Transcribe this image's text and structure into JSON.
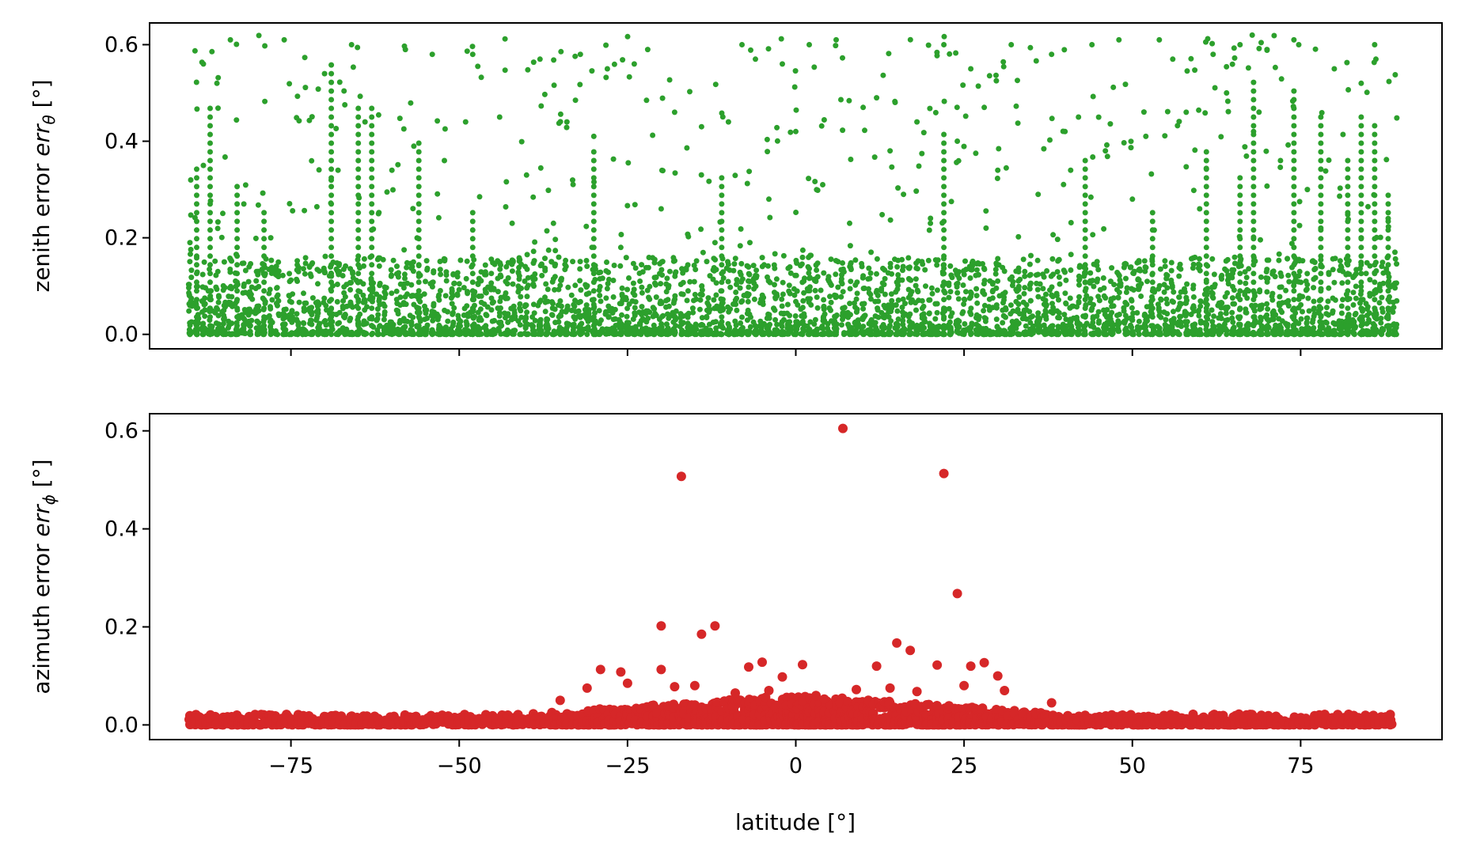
{
  "chart_data": [
    {
      "type": "scatter",
      "panel": "top",
      "title": "",
      "xlabel": "",
      "ylabel_prefix": "zenith error ",
      "ylabel_symbol": "err",
      "ylabel_subscript": "θ",
      "ylabel_unit": " [°]",
      "xlim": [
        -96,
        96
      ],
      "ylim": [
        -0.03,
        0.645
      ],
      "xticks": [
        -75,
        -50,
        -25,
        0,
        25,
        50,
        75
      ],
      "xtick_labels_visible": false,
      "yticks": [
        0.0,
        0.2,
        0.4,
        0.6
      ],
      "ytick_labels": [
        "0.0",
        "0.2",
        "0.4",
        "0.6"
      ],
      "grid": false,
      "color": "#2ca02c",
      "series": [
        {
          "points_sample": [
            [
              -90,
              0.0
            ],
            [
              -90,
              0.06
            ],
            [
              -90,
              0.19
            ],
            [
              -88,
              0.35
            ],
            [
              -88,
              0.56
            ],
            [
              -86,
              0.52
            ],
            [
              -84,
              0.61
            ],
            [
              -84,
              0.0
            ],
            [
              -82,
              0.27
            ],
            [
              -80,
              0.05
            ],
            [
              -78,
              0.2
            ],
            [
              -76,
              0.61
            ],
            [
              -74,
              0.0
            ],
            [
              -72,
              0.12
            ],
            [
              -70,
              0.54
            ],
            [
              -68,
              0.34
            ],
            [
              -66,
              0.6
            ],
            [
              -64,
              0.44
            ],
            [
              -62,
              0.25
            ],
            [
              -60,
              0.34
            ],
            [
              -58,
              0.59
            ],
            [
              -56,
              0.12
            ],
            [
              -54,
              0.58
            ],
            [
              -52,
              0.08
            ],
            [
              -50,
              0.0
            ],
            [
              -48,
              0.58
            ],
            [
              -46,
              0.04
            ],
            [
              -44,
              0.45
            ],
            [
              -42,
              0.15
            ],
            [
              -40,
              0.33
            ],
            [
              -38,
              0.57
            ],
            [
              -36,
              0.23
            ],
            [
              -34,
              0.44
            ],
            [
              -32,
              0.58
            ],
            [
              -30,
              0.41
            ],
            [
              -28,
              0.55
            ],
            [
              -26,
              0.18
            ],
            [
              -24,
              0.56
            ],
            [
              -22,
              0.59
            ],
            [
              -20,
              0.26
            ],
            [
              -18,
              0.46
            ],
            [
              -16,
              0.09
            ],
            [
              -14,
              0.43
            ],
            [
              -12,
              0.19
            ],
            [
              -10,
              0.44
            ],
            [
              -8,
              0.6
            ],
            [
              -6,
              0.57
            ],
            [
              -4,
              0.28
            ],
            [
              -2,
              0.56
            ],
            [
              0,
              0.42
            ],
            [
              2,
              0.6
            ],
            [
              4,
              0.31
            ],
            [
              6,
              0.61
            ],
            [
              8,
              0.23
            ],
            [
              10,
              0.47
            ],
            [
              12,
              0.49
            ],
            [
              14,
              0.38
            ],
            [
              16,
              0.29
            ],
            [
              18,
              0.44
            ],
            [
              20,
              0.23
            ],
            [
              22,
              0.6
            ],
            [
              24,
              0.4
            ],
            [
              26,
              0.55
            ],
            [
              28,
              0.47
            ],
            [
              30,
              0.34
            ],
            [
              32,
              0.6
            ],
            [
              34,
              0.12
            ],
            [
              36,
              0.29
            ],
            [
              38,
              0.58
            ],
            [
              40,
              0.42
            ],
            [
              42,
              0.45
            ],
            [
              44,
              0.6
            ],
            [
              46,
              0.38
            ],
            [
              48,
              0.61
            ],
            [
              50,
              0.28
            ],
            [
              52,
              0.41
            ],
            [
              54,
              0.61
            ],
            [
              56,
              0.57
            ],
            [
              58,
              0.46
            ],
            [
              60,
              0.26
            ],
            [
              62,
              0.58
            ],
            [
              64,
              0.5
            ],
            [
              66,
              0.6
            ],
            [
              68,
              0.42
            ],
            [
              70,
              0.59
            ],
            [
              72,
              0.36
            ],
            [
              74,
              0.61
            ],
            [
              76,
              0.3
            ],
            [
              78,
              0.22
            ],
            [
              80,
              0.55
            ],
            [
              82,
              0.0
            ],
            [
              84,
              0.52
            ],
            [
              84,
              0.2
            ],
            [
              86,
              0.6
            ],
            [
              88,
              0.24
            ],
            [
              89,
              0.0
            ],
            [
              89,
              0.17
            ]
          ],
          "note_distribution": "dense band 0.0–0.15 across all latitudes; sparse points up to ~0.62; vertical stripes at discrete latitudes"
        }
      ]
    },
    {
      "type": "scatter",
      "panel": "bottom",
      "title": "",
      "xlabel": "latitude [°]",
      "ylabel_prefix": "azimuth error ",
      "ylabel_symbol": "err",
      "ylabel_subscript": "ϕ",
      "ylabel_unit": " [°]",
      "xlim": [
        -96,
        96
      ],
      "ylim": [
        -0.03,
        0.635
      ],
      "xticks": [
        -75,
        -50,
        -25,
        0,
        25,
        50,
        75
      ],
      "xtick_labels": [
        "−75",
        "−50",
        "−25",
        "0",
        "25",
        "50",
        "75"
      ],
      "yticks": [
        0.0,
        0.2,
        0.4,
        0.6
      ],
      "ytick_labels": [
        "0.0",
        "0.2",
        "0.4",
        "0.6"
      ],
      "grid": false,
      "color": "#d62728",
      "series": [
        {
          "outliers": [
            [
              7,
              0.605
            ],
            [
              -17,
              0.507
            ],
            [
              22,
              0.513
            ],
            [
              24,
              0.268
            ],
            [
              -20,
              0.202
            ],
            [
              -12,
              0.202
            ],
            [
              -14,
              0.185
            ],
            [
              15,
              0.167
            ],
            [
              17,
              0.152
            ],
            [
              -7,
              0.118
            ],
            [
              -5,
              0.128
            ],
            [
              1,
              0.123
            ],
            [
              -20,
              0.113
            ],
            [
              -29,
              0.113
            ],
            [
              -26,
              0.108
            ],
            [
              12,
              0.12
            ],
            [
              21,
              0.122
            ],
            [
              26,
              0.12
            ],
            [
              28,
              0.127
            ],
            [
              -2,
              0.098
            ],
            [
              30,
              0.1
            ],
            [
              -31,
              0.075
            ],
            [
              -25,
              0.085
            ],
            [
              -18,
              0.078
            ],
            [
              -15,
              0.08
            ],
            [
              -9,
              0.065
            ],
            [
              -4,
              0.07
            ],
            [
              3,
              0.06
            ],
            [
              9,
              0.072
            ],
            [
              14,
              0.075
            ],
            [
              18,
              0.068
            ],
            [
              25,
              0.08
            ],
            [
              31,
              0.07
            ],
            [
              -35,
              0.05
            ],
            [
              38,
              0.045
            ]
          ],
          "base_band": "dense band 0.0–0.03 from latitude −90 to 89, rising to ~0.05 near ±35"
        }
      ]
    }
  ],
  "colors": {
    "top_series": "#2ca02c",
    "bottom_series": "#d62728",
    "axes": "#000000"
  }
}
